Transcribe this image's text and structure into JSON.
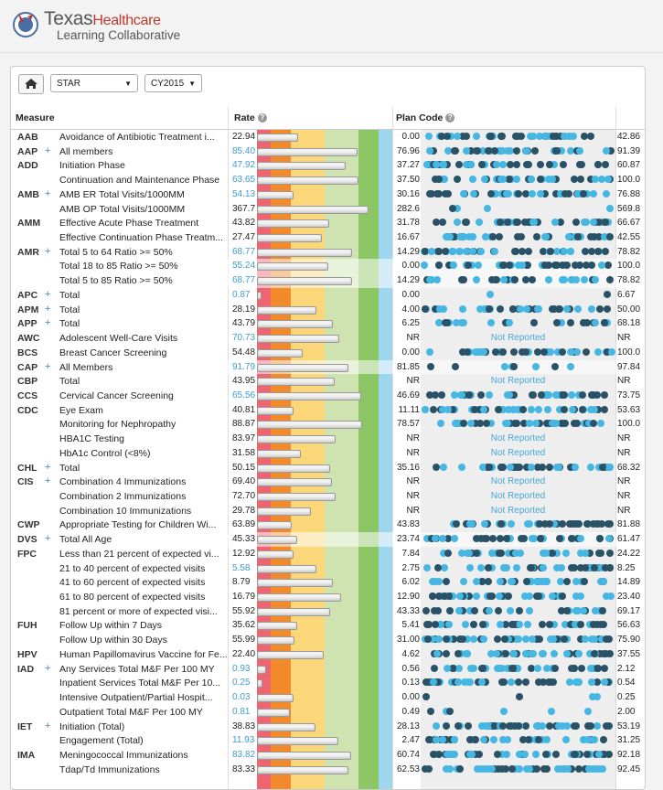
{
  "header": {
    "brand_main": "Texas",
    "brand_accent": "Healthcare",
    "brand_sub": "Learning Collaborative"
  },
  "toolbar": {
    "home_icon": "home-icon",
    "program_value": "STAR",
    "year_value": "CY2015"
  },
  "table_header": {
    "measure": "Measure",
    "rate": "Rate",
    "plan_code": "Plan Code"
  },
  "colors": {
    "band_red": "#ee6470",
    "band_orange": "#f28a2c",
    "band_yellow": "#fbd77a",
    "band_lightgreen": "#cfe3b0",
    "band_green": "#8cc665",
    "band_blue": "#9dd6ef",
    "dot_dark": "#2a5266",
    "dot_light": "#46b6e3"
  },
  "rows": [
    {
      "code": "AAB",
      "plus": false,
      "name": "Avoidance of Antibiotic Treatment i...",
      "rate": "22.94",
      "blue": false,
      "bar": 0.31,
      "min": "0.00",
      "max": "42.86",
      "nr": false,
      "dots": 0.95,
      "hl": false
    },
    {
      "code": "AAP",
      "plus": true,
      "name": "All members",
      "rate": "85.40",
      "blue": true,
      "bar": 0.77,
      "min": "76.96",
      "max": "91.39",
      "nr": false,
      "dots": 0.9,
      "hl": false
    },
    {
      "code": "ADD",
      "plus": false,
      "name": "Initiation Phase",
      "rate": "47.92",
      "blue": true,
      "bar": 0.68,
      "min": "37.27",
      "max": "60.87",
      "nr": false,
      "dots": 0.9,
      "hl": false
    },
    {
      "code": "",
      "plus": false,
      "name": "Continuation and Maintenance Phase",
      "rate": "63.65",
      "blue": true,
      "bar": 0.78,
      "min": "37.50",
      "max": "100.0",
      "nr": false,
      "dots": 0.85,
      "hl": false
    },
    {
      "code": "AMB",
      "plus": true,
      "name": "AMB ER Total Visits/1000MM",
      "rate": "54.13",
      "blue": true,
      "bar": 0.27,
      "min": "30.16",
      "max": "76.88",
      "nr": false,
      "dots": 0.9,
      "hl": false
    },
    {
      "code": "",
      "plus": false,
      "name": "AMB OP Total Visits/1000MM",
      "rate": "367.7",
      "blue": false,
      "bar": 0.86,
      "min": "282.6",
      "max": "569.8",
      "nr": false,
      "dots": 0.1,
      "hl": false
    },
    {
      "code": "AMM",
      "plus": false,
      "name": "Effective Acute Phase Treatment",
      "rate": "43.82",
      "blue": false,
      "bar": 0.55,
      "min": "31.78",
      "max": "66.67",
      "nr": false,
      "dots": 0.9,
      "hl": false
    },
    {
      "code": "",
      "plus": false,
      "name": "Effective Continuation Phase Treatm...",
      "rate": "27.47",
      "blue": false,
      "bar": 0.49,
      "min": "16.67",
      "max": "42.55",
      "nr": false,
      "dots": 0.9,
      "hl": false
    },
    {
      "code": "AMR",
      "plus": true,
      "name": "Total 5 to 64 Ratio >= 50%",
      "rate": "68.77",
      "blue": true,
      "bar": 0.73,
      "min": "14.29",
      "max": "78.82",
      "nr": false,
      "dots": 0.9,
      "hl": false
    },
    {
      "code": "",
      "plus": false,
      "name": "Total 18 to 85 Ratio >= 50%",
      "rate": "55.24",
      "blue": true,
      "bar": 0.54,
      "min": "0.00",
      "max": "100.0",
      "nr": false,
      "dots": 0.85,
      "hl": true
    },
    {
      "code": "",
      "plus": false,
      "name": "Total 5 to 85 Ratio >= 50%",
      "rate": "68.77",
      "blue": true,
      "bar": 0.73,
      "min": "14.29",
      "max": "78.82",
      "nr": false,
      "dots": 0.7,
      "hl": true
    },
    {
      "code": "APC",
      "plus": true,
      "name": "Total",
      "rate": "0.87",
      "blue": true,
      "bar": 0.02,
      "min": "0.00",
      "max": "6.67",
      "nr": false,
      "dots": 0.05,
      "hl": false
    },
    {
      "code": "APM",
      "plus": true,
      "name": "Total",
      "rate": "28.19",
      "blue": false,
      "bar": 0.45,
      "min": "4.00",
      "max": "50.00",
      "nr": false,
      "dots": 0.9,
      "hl": false
    },
    {
      "code": "APP",
      "plus": true,
      "name": "Total",
      "rate": "43.79",
      "blue": false,
      "bar": 0.58,
      "min": "6.25",
      "max": "68.18",
      "nr": false,
      "dots": 0.55,
      "hl": false
    },
    {
      "code": "AWC",
      "plus": false,
      "name": "Adolescent Well-Care Visits",
      "rate": "70.73",
      "blue": true,
      "bar": 0.63,
      "min": "NR",
      "max": "NR",
      "nr": true,
      "dots": 0,
      "hl": false
    },
    {
      "code": "BCS",
      "plus": false,
      "name": "Breast Cancer Screening",
      "rate": "54.48",
      "blue": false,
      "bar": 0.34,
      "min": "0.00",
      "max": "100.0",
      "nr": false,
      "dots": 0.9,
      "hl": false
    },
    {
      "code": "CAP",
      "plus": true,
      "name": "All Members",
      "rate": "91.79",
      "blue": true,
      "bar": 0.7,
      "min": "81.85",
      "max": "97.84",
      "nr": false,
      "dots": 0.2,
      "hl": true
    },
    {
      "code": "CBP",
      "plus": false,
      "name": "Total",
      "rate": "43.95",
      "blue": false,
      "bar": 0.59,
      "min": "NR",
      "max": "NR",
      "nr": true,
      "dots": 0,
      "hl": false
    },
    {
      "code": "CCS",
      "plus": false,
      "name": "Cervical Cancer Screening",
      "rate": "65.56",
      "blue": true,
      "bar": 0.8,
      "min": "46.69",
      "max": "73.75",
      "nr": false,
      "dots": 0.9,
      "hl": false
    },
    {
      "code": "CDC",
      "plus": false,
      "name": "Eye Exam",
      "rate": "40.81",
      "blue": false,
      "bar": 0.27,
      "min": "11.11",
      "max": "53.63",
      "nr": false,
      "dots": 0.9,
      "hl": false
    },
    {
      "code": "",
      "plus": false,
      "name": "Monitoring for Nephropathy",
      "rate": "88.87",
      "blue": false,
      "bar": 0.81,
      "min": "78.57",
      "max": "100.0",
      "nr": false,
      "dots": 0.9,
      "hl": false
    },
    {
      "code": "",
      "plus": false,
      "name": "HBA1C Testing",
      "rate": "83.97",
      "blue": false,
      "bar": 0.6,
      "min": "NR",
      "max": "NR",
      "nr": true,
      "dots": 0,
      "hl": false
    },
    {
      "code": "",
      "plus": false,
      "name": "HbA1c Control (<8%)",
      "rate": "31.58",
      "blue": false,
      "bar": 0.33,
      "min": "NR",
      "max": "NR",
      "nr": true,
      "dots": 0,
      "hl": false
    },
    {
      "code": "CHL",
      "plus": true,
      "name": "Total",
      "rate": "50.15",
      "blue": false,
      "bar": 0.56,
      "min": "35.16",
      "max": "68.32",
      "nr": false,
      "dots": 0.9,
      "hl": false
    },
    {
      "code": "CIS",
      "plus": true,
      "name": "Combination 4 Immunizations",
      "rate": "69.40",
      "blue": false,
      "bar": 0.57,
      "min": "NR",
      "max": "NR",
      "nr": true,
      "dots": 0,
      "hl": false
    },
    {
      "code": "",
      "plus": false,
      "name": "Combination 2 Immunizations",
      "rate": "72.70",
      "blue": false,
      "bar": 0.6,
      "min": "NR",
      "max": "NR",
      "nr": true,
      "dots": 0,
      "hl": false
    },
    {
      "code": "",
      "plus": false,
      "name": "Combination 10 Immunizations",
      "rate": "29.78",
      "blue": false,
      "bar": 0.41,
      "min": "NR",
      "max": "NR",
      "nr": true,
      "dots": 0,
      "hl": false
    },
    {
      "code": "CWP",
      "plus": false,
      "name": "Appropriate Testing for Children Wi...",
      "rate": "63.89",
      "blue": false,
      "bar": 0.26,
      "min": "43.83",
      "max": "81.88",
      "nr": false,
      "dots": 0.9,
      "hl": false
    },
    {
      "code": "DVS",
      "plus": true,
      "name": "Total All Age",
      "rate": "45.33",
      "blue": false,
      "bar": 0.3,
      "min": "23.74",
      "max": "61.47",
      "nr": false,
      "dots": 0.9,
      "hl": true
    },
    {
      "code": "FPC",
      "plus": false,
      "name": "Less than 21 percent of expected vi...",
      "rate": "12.92",
      "blue": false,
      "bar": 0.27,
      "min": "7.84",
      "max": "24.22",
      "nr": false,
      "dots": 0.7,
      "hl": false
    },
    {
      "code": "",
      "plus": false,
      "name": "21 to 40 percent of expected visits",
      "rate": "5.58",
      "blue": true,
      "bar": 0.45,
      "min": "2.75",
      "max": "8.25",
      "nr": false,
      "dots": 0.85,
      "hl": false
    },
    {
      "code": "",
      "plus": false,
      "name": "41 to 60 percent of expected visits",
      "rate": "8.79",
      "blue": false,
      "bar": 0.58,
      "min": "6.02",
      "max": "14.89",
      "nr": false,
      "dots": 0.85,
      "hl": false
    },
    {
      "code": "",
      "plus": false,
      "name": "61 to 80 percent of expected visits",
      "rate": "16.79",
      "blue": false,
      "bar": 0.64,
      "min": "12.90",
      "max": "23.40",
      "nr": false,
      "dots": 0.9,
      "hl": false
    },
    {
      "code": "",
      "plus": false,
      "name": "81 percent or more of expected visi...",
      "rate": "55.92",
      "blue": false,
      "bar": 0.56,
      "min": "43.33",
      "max": "69.17",
      "nr": false,
      "dots": 0.7,
      "hl": false
    },
    {
      "code": "FUH",
      "plus": false,
      "name": "Follow Up within 7 Days",
      "rate": "35.62",
      "blue": false,
      "bar": 0.3,
      "min": "5.41",
      "max": "56.63",
      "nr": false,
      "dots": 0.9,
      "hl": false
    },
    {
      "code": "",
      "plus": false,
      "name": "Follow Up within 30 Days",
      "rate": "55.99",
      "blue": false,
      "bar": 0.28,
      "min": "31.00",
      "max": "75.90",
      "nr": false,
      "dots": 0.95,
      "hl": false
    },
    {
      "code": "HPV",
      "plus": false,
      "name": "Human Papillomavirus Vaccine for Fe...",
      "rate": "22.40",
      "blue": false,
      "bar": 0.51,
      "min": "4.62",
      "max": "37.55",
      "nr": false,
      "dots": 0.95,
      "hl": false
    },
    {
      "code": "IAD",
      "plus": true,
      "name": "Any Services Total M&F Per 100 MY",
      "rate": "0.93",
      "blue": true,
      "bar": 0.06,
      "min": "0.56",
      "max": "2.12",
      "nr": false,
      "dots": 0.9,
      "hl": false
    },
    {
      "code": "",
      "plus": false,
      "name": "Inpatient Services Total M&F Per 10...",
      "rate": "0.25",
      "blue": true,
      "bar": 0.03,
      "min": "0.13",
      "max": "0.54",
      "nr": false,
      "dots": 0.9,
      "hl": false
    },
    {
      "code": "",
      "plus": false,
      "name": "Intensive Outpatient/Partial Hospit...",
      "rate": "0.03",
      "blue": true,
      "bar": 0.27,
      "min": "0.00",
      "max": "0.25",
      "nr": false,
      "dots": 0.1,
      "hl": false
    },
    {
      "code": "",
      "plus": false,
      "name": "Outpatient Total M&F Per 100 MY",
      "rate": "0.81",
      "blue": true,
      "bar": 0.24,
      "min": "0.49",
      "max": "2.00",
      "nr": false,
      "dots": 0.15,
      "hl": false
    },
    {
      "code": "IET",
      "plus": true,
      "name": "Initiation (Total)",
      "rate": "38.83",
      "blue": false,
      "bar": 0.44,
      "min": "28.13",
      "max": "53.19",
      "nr": false,
      "dots": 0.95,
      "hl": false
    },
    {
      "code": "",
      "plus": false,
      "name": "Engagement (Total)",
      "rate": "11.93",
      "blue": true,
      "bar": 0.62,
      "min": "2.47",
      "max": "31.25",
      "nr": false,
      "dots": 0.9,
      "hl": false
    },
    {
      "code": "IMA",
      "plus": false,
      "name": "Meningococcal Immunizations",
      "rate": "83.82",
      "blue": true,
      "bar": 0.72,
      "min": "60.74",
      "max": "92.18",
      "nr": false,
      "dots": 0.9,
      "hl": false
    },
    {
      "code": "",
      "plus": false,
      "name": "Tdap/Td Immunizations",
      "rate": "83.33",
      "blue": false,
      "bar": 0.7,
      "min": "62.53",
      "max": "92.45",
      "nr": false,
      "dots": 0.9,
      "hl": false
    }
  ]
}
